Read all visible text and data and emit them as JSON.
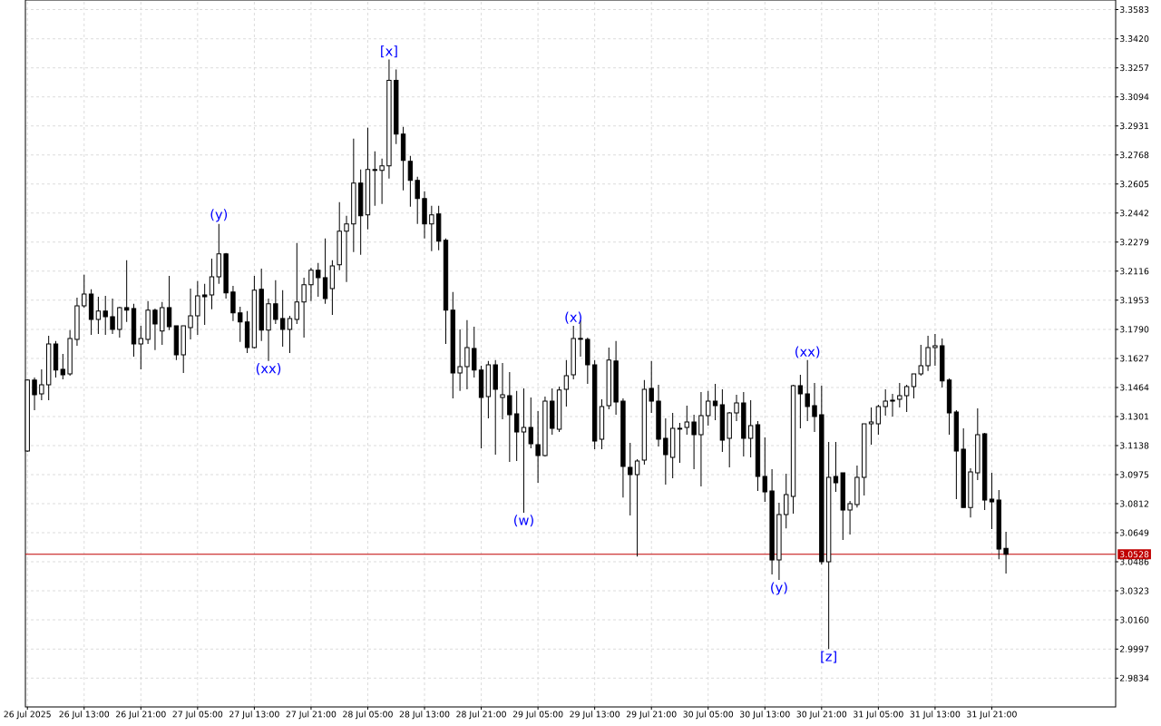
{
  "chart_data": {
    "type": "candlestick",
    "color": "#000000",
    "grid": true,
    "xlim": [
      "2025-07-26T04:43",
      "2025-08-01T14:28"
    ],
    "ylim": [
      2.9672,
      3.3637
    ],
    "xticks": [
      {
        "value": "2025-07-26T05:00",
        "label": "26 Jul 2025"
      },
      {
        "value": "2025-07-26T13:00",
        "label": "26 Jul 13:00"
      },
      {
        "value": "2025-07-26T21:00",
        "label": "26 Jul 21:00"
      },
      {
        "value": "2025-07-27T05:00",
        "label": "27 Jul 05:00"
      },
      {
        "value": "2025-07-27T13:00",
        "label": "27 Jul 13:00"
      },
      {
        "value": "2025-07-27T21:00",
        "label": "27 Jul 21:00"
      },
      {
        "value": "2025-07-28T05:00",
        "label": "28 Jul 05:00"
      },
      {
        "value": "2025-07-28T13:00",
        "label": "28 Jul 13:00"
      },
      {
        "value": "2025-07-28T21:00",
        "label": "28 Jul 21:00"
      },
      {
        "value": "2025-07-29T05:00",
        "label": "29 Jul 05:00"
      },
      {
        "value": "2025-07-29T13:00",
        "label": "29 Jul 13:00"
      },
      {
        "value": "2025-07-29T21:00",
        "label": "29 Jul 21:00"
      },
      {
        "value": "2025-07-30T05:00",
        "label": "30 Jul 05:00"
      },
      {
        "value": "2025-07-30T13:00",
        "label": "30 Jul 13:00"
      },
      {
        "value": "2025-07-30T21:00",
        "label": "30 Jul 21:00"
      },
      {
        "value": "2025-07-31T05:00",
        "label": "31 Jul 05:00"
      },
      {
        "value": "2025-07-31T13:00",
        "label": "31 Jul 13:00"
      },
      {
        "value": "2025-07-31T21:00",
        "label": "31 Jul 21:00"
      }
    ],
    "yticks": [
      2.9834,
      2.9997,
      {
        "value": 3.016,
        "label": "3.0160"
      },
      3.0323,
      3.0486,
      3.0649,
      3.0812,
      3.0975,
      3.1138,
      3.1301,
      3.1464,
      3.1627,
      {
        "value": 3.179,
        "label": "3.1790"
      },
      3.1953,
      3.2116,
      3.2279,
      3.2442,
      3.2605,
      3.2768,
      3.2931,
      3.3094,
      3.3257,
      {
        "value": 3.342,
        "label": "3.3420"
      },
      3.3583
    ],
    "x": [
      "2025-07-26T05:00",
      "2025-07-26T06:00",
      "2025-07-26T07:00",
      "2025-07-26T08:00",
      "2025-07-26T09:00",
      "2025-07-26T10:00",
      "2025-07-26T11:00",
      "2025-07-26T12:00",
      "2025-07-26T13:00",
      "2025-07-26T14:00",
      "2025-07-26T15:00",
      "2025-07-26T16:00",
      "2025-07-26T17:00",
      "2025-07-26T18:00",
      "2025-07-26T19:00",
      "2025-07-26T20:00",
      "2025-07-26T21:00",
      "2025-07-26T22:00",
      "2025-07-26T23:00",
      "2025-07-27T00:00",
      "2025-07-27T01:00",
      "2025-07-27T02:00",
      "2025-07-27T03:00",
      "2025-07-27T04:00",
      "2025-07-27T05:00",
      "2025-07-27T06:00",
      "2025-07-27T07:00",
      "2025-07-27T08:00",
      "2025-07-27T09:00",
      "2025-07-27T10:00",
      "2025-07-27T11:00",
      "2025-07-27T12:00",
      "2025-07-27T13:00",
      "2025-07-27T14:00",
      "2025-07-27T15:00",
      "2025-07-27T16:00",
      "2025-07-27T17:00",
      "2025-07-27T18:00",
      "2025-07-27T19:00",
      "2025-07-27T20:00",
      "2025-07-27T21:00",
      "2025-07-27T22:00",
      "2025-07-27T23:00",
      "2025-07-28T00:00",
      "2025-07-28T01:00",
      "2025-07-28T02:00",
      "2025-07-28T03:00",
      "2025-07-28T04:00",
      "2025-07-28T05:00",
      "2025-07-28T06:00",
      "2025-07-28T07:00",
      "2025-07-28T08:00",
      "2025-07-28T09:00",
      "2025-07-28T10:00",
      "2025-07-28T11:00",
      "2025-07-28T12:00",
      "2025-07-28T13:00",
      "2025-07-28T14:00",
      "2025-07-28T15:00",
      "2025-07-28T16:00",
      "2025-07-28T17:00",
      "2025-07-28T18:00",
      "2025-07-28T19:00",
      "2025-07-28T20:00",
      "2025-07-28T21:00",
      "2025-07-28T22:00",
      "2025-07-28T23:00",
      "2025-07-29T00:00",
      "2025-07-29T01:00",
      "2025-07-29T02:00",
      "2025-07-29T03:00",
      "2025-07-29T04:00",
      "2025-07-29T05:00",
      "2025-07-29T06:00",
      "2025-07-29T07:00",
      "2025-07-29T08:00",
      "2025-07-29T09:00",
      "2025-07-29T10:00",
      "2025-07-29T11:00",
      "2025-07-29T12:00",
      "2025-07-29T13:00",
      "2025-07-29T14:00",
      "2025-07-29T15:00",
      "2025-07-29T16:00",
      "2025-07-29T17:00",
      "2025-07-29T18:00",
      "2025-07-29T19:00",
      "2025-07-29T20:00",
      "2025-07-29T21:00",
      "2025-07-29T22:00",
      "2025-07-29T23:00",
      "2025-07-30T00:00",
      "2025-07-30T01:00",
      "2025-07-30T02:00",
      "2025-07-30T03:00",
      "2025-07-30T04:00",
      "2025-07-30T05:00",
      "2025-07-30T06:00",
      "2025-07-30T07:00",
      "2025-07-30T08:00",
      "2025-07-30T09:00",
      "2025-07-30T10:00",
      "2025-07-30T11:00",
      "2025-07-30T12:00",
      "2025-07-30T13:00",
      "2025-07-30T14:00",
      "2025-07-30T15:00",
      "2025-07-30T16:00",
      "2025-07-30T17:00",
      "2025-07-30T18:00",
      "2025-07-30T19:00",
      "2025-07-30T20:00",
      "2025-07-30T21:00",
      "2025-07-30T22:00",
      "2025-07-30T23:00",
      "2025-07-31T00:00",
      "2025-07-31T01:00",
      "2025-07-31T02:00",
      "2025-07-31T03:00",
      "2025-07-31T04:00",
      "2025-07-31T05:00",
      "2025-07-31T06:00",
      "2025-07-31T07:00",
      "2025-07-31T08:00",
      "2025-07-31T09:00",
      "2025-07-31T10:00",
      "2025-07-31T11:00",
      "2025-07-31T12:00",
      "2025-07-31T13:00",
      "2025-07-31T14:00",
      "2025-07-31T15:00",
      "2025-07-31T16:00",
      "2025-07-31T17:00",
      "2025-07-31T18:00",
      "2025-07-31T19:00",
      "2025-07-31T20:00",
      "2025-07-31T21:00",
      "2025-07-31T22:00",
      "2025-07-31T23:00"
    ],
    "ohlc": [
      [
        3.1107,
        3.151,
        3.1102,
        3.1505
      ],
      [
        3.1505,
        3.152,
        3.1337,
        3.1423
      ],
      [
        3.1428,
        3.1566,
        3.1393,
        3.1479
      ],
      [
        3.1479,
        3.1754,
        3.1393,
        3.1708
      ],
      [
        3.1708,
        3.1724,
        3.152,
        3.1561
      ],
      [
        3.1566,
        3.1652,
        3.151,
        3.1535
      ],
      [
        3.154,
        3.1785,
        3.153,
        3.1739
      ],
      [
        3.1734,
        3.1968,
        3.1698,
        3.1922
      ],
      [
        3.1922,
        3.2096,
        3.1912,
        3.1988
      ],
      [
        3.1988,
        3.2014,
        3.1759,
        3.1846
      ],
      [
        3.1846,
        3.1973,
        3.1764,
        3.1892
      ],
      [
        3.1892,
        3.1978,
        3.1759,
        3.1861
      ],
      [
        3.1861,
        3.1963,
        3.1764,
        3.179
      ],
      [
        3.179,
        3.1917,
        3.1744,
        3.1912
      ],
      [
        3.1912,
        3.2177,
        3.1831,
        3.1897
      ],
      [
        3.1907,
        3.1933,
        3.1637,
        3.1708
      ],
      [
        3.1708,
        3.181,
        3.1566,
        3.1739
      ],
      [
        3.1734,
        3.1948,
        3.1708,
        3.1897
      ],
      [
        3.1897,
        3.1907,
        3.1673,
        3.182
      ],
      [
        3.178,
        3.1943,
        3.1703,
        3.1912
      ],
      [
        3.1912,
        3.209,
        3.1785,
        3.1805
      ],
      [
        3.181,
        3.181,
        3.1617,
        3.1647
      ],
      [
        3.1647,
        3.181,
        3.1545,
        3.181
      ],
      [
        3.18,
        3.2019,
        3.1734,
        3.1866
      ],
      [
        3.1866,
        3.206,
        3.1759,
        3.1978
      ],
      [
        3.1983,
        3.2045,
        3.1815,
        3.1973
      ],
      [
        3.1983,
        3.2187,
        3.1902,
        3.2085
      ],
      [
        3.2085,
        3.2381,
        3.2045,
        3.2213
      ],
      [
        3.2213,
        3.2218,
        3.1963,
        3.1994
      ],
      [
        3.1999,
        3.2034,
        3.1836,
        3.1882
      ],
      [
        3.1882,
        3.1917,
        3.1719,
        3.1831
      ],
      [
        3.1831,
        3.1892,
        3.1657,
        3.1688
      ],
      [
        3.1688,
        3.209,
        3.1683,
        3.2009
      ],
      [
        3.2014,
        3.2131,
        3.1724,
        3.1785
      ],
      [
        3.1785,
        3.1963,
        3.1612,
        3.1933
      ],
      [
        3.1933,
        3.2065,
        3.182,
        3.1846
      ],
      [
        3.1851,
        3.2009,
        3.1693,
        3.179
      ],
      [
        3.179,
        3.1866,
        3.1657,
        3.1851
      ],
      [
        3.1846,
        3.2274,
        3.182,
        3.1943
      ],
      [
        3.1943,
        3.208,
        3.1744,
        3.204
      ],
      [
        3.204,
        3.2136,
        3.1948,
        3.2121
      ],
      [
        3.2121,
        3.2162,
        3.1973,
        3.208
      ],
      [
        3.208,
        3.2299,
        3.1933,
        3.1963
      ],
      [
        3.2019,
        3.2177,
        3.1871,
        3.2146
      ],
      [
        3.2152,
        3.2503,
        3.2121,
        3.234
      ],
      [
        3.234,
        3.2427,
        3.2055,
        3.2381
      ],
      [
        3.2381,
        3.286,
        3.2223,
        3.261
      ],
      [
        3.261,
        3.2686,
        3.2208,
        3.2427
      ],
      [
        3.2432,
        3.2921,
        3.235,
        3.2686
      ],
      [
        3.2686,
        3.2788,
        3.2483,
        3.2681
      ],
      [
        3.2681,
        3.2747,
        3.2493,
        3.2707
      ],
      [
        3.2707,
        3.3303,
        3.2636,
        3.3186
      ],
      [
        3.3186,
        3.3247,
        3.2829,
        3.2885
      ],
      [
        3.2885,
        3.2926,
        3.2569,
        3.2737
      ],
      [
        3.2732,
        3.2763,
        3.2478,
        3.2625
      ],
      [
        3.2625,
        3.2646,
        3.2381,
        3.2523
      ],
      [
        3.2523,
        3.2564,
        3.2299,
        3.2381
      ],
      [
        3.2381,
        3.2483,
        3.2228,
        3.2432
      ],
      [
        3.2437,
        3.2483,
        3.2233,
        3.2284
      ],
      [
        3.2289,
        3.2299,
        3.1708,
        3.1897
      ],
      [
        3.1897,
        3.1999,
        3.1403,
        3.1545
      ],
      [
        3.1545,
        3.179,
        3.1444,
        3.1581
      ],
      [
        3.1581,
        3.1841,
        3.1454,
        3.1688
      ],
      [
        3.1683,
        3.1805,
        3.152,
        3.1561
      ],
      [
        3.1561,
        3.1586,
        3.1123,
        3.1408
      ],
      [
        3.1413,
        3.1612,
        3.1291,
        3.1591
      ],
      [
        3.1591,
        3.1617,
        3.1087,
        3.1454
      ],
      [
        3.1408,
        3.1601,
        3.1286,
        3.1423
      ],
      [
        3.1418,
        3.155,
        3.1046,
        3.1311
      ],
      [
        3.1316,
        3.1444,
        3.1051,
        3.1214
      ],
      [
        3.1214,
        3.1459,
        3.0761,
        3.124
      ],
      [
        3.124,
        3.1408,
        3.1123,
        3.1148
      ],
      [
        3.1143,
        3.1331,
        3.0929,
        3.1082
      ],
      [
        3.1082,
        3.1413,
        3.1077,
        3.1387
      ],
      [
        3.1387,
        3.1459,
        3.1199,
        3.1235
      ],
      [
        3.123,
        3.1469,
        3.1214,
        3.1449
      ],
      [
        3.1454,
        3.1617,
        3.1357,
        3.153
      ],
      [
        3.1535,
        3.181,
        3.151,
        3.1739
      ],
      [
        3.1739,
        3.1841,
        3.1637,
        3.1734
      ],
      [
        3.1734,
        3.1744,
        3.1484,
        3.1591
      ],
      [
        3.1591,
        3.1617,
        3.1117,
        3.1163
      ],
      [
        3.1174,
        3.1398,
        3.1117,
        3.1357
      ],
      [
        3.1362,
        3.1688,
        3.1342,
        3.1617
      ],
      [
        3.1612,
        3.1724,
        3.1311,
        3.1382
      ],
      [
        3.1387,
        3.1403,
        3.0847,
        3.1021
      ],
      [
        3.1016,
        3.1153,
        3.0746,
        3.0975
      ],
      [
        3.0975,
        3.1061,
        3.0516,
        3.1051
      ],
      [
        3.1056,
        3.1505,
        3.1031,
        3.1454
      ],
      [
        3.1459,
        3.1612,
        3.1321,
        3.1387
      ],
      [
        3.1387,
        3.1479,
        3.1133,
        3.1174
      ],
      [
        3.1179,
        3.1291,
        3.0919,
        3.1087
      ],
      [
        3.1072,
        3.1321,
        3.0955,
        3.1235
      ],
      [
        3.1235,
        3.1265,
        3.1041,
        3.123
      ],
      [
        3.124,
        3.1362,
        3.1199,
        3.127
      ],
      [
        3.127,
        3.1311,
        3.1005,
        3.1199
      ],
      [
        3.1199,
        3.1438,
        3.0909,
        3.1306
      ],
      [
        3.1306,
        3.1444,
        3.125,
        3.1387
      ],
      [
        3.1387,
        3.1484,
        3.1281,
        3.1362
      ],
      [
        3.1367,
        3.1454,
        3.1102,
        3.1168
      ],
      [
        3.1179,
        3.1326,
        3.1016,
        3.1321
      ],
      [
        3.1321,
        3.1423,
        3.1275,
        3.1377
      ],
      [
        3.1377,
        3.1438,
        3.1077,
        3.1179
      ],
      [
        3.1179,
        3.1393,
        3.1072,
        3.125
      ],
      [
        3.1255,
        3.1275,
        3.0883,
        3.0965
      ],
      [
        3.0965,
        3.1184,
        3.0822,
        3.0878
      ],
      [
        3.0883,
        3.1005,
        3.0415,
        3.0496
      ],
      [
        3.0496,
        3.0817,
        3.0384,
        3.0751
      ],
      [
        3.0751,
        3.098,
        3.0674,
        3.0863
      ],
      [
        3.0853,
        3.1479,
        3.0756,
        3.1474
      ],
      [
        3.1474,
        3.1535,
        3.1235,
        3.1428
      ],
      [
        3.1428,
        3.1617,
        3.1275,
        3.1357
      ],
      [
        3.1362,
        3.1489,
        3.1214,
        3.1301
      ],
      [
        3.1311,
        3.1474,
        3.0471,
        3.0486
      ],
      [
        3.0486,
        3.1158,
        2.9997,
        3.096
      ],
      [
        3.0965,
        3.1158,
        3.0878,
        3.0929
      ],
      [
        3.0985,
        3.0985,
        3.0608,
        3.0776
      ],
      [
        3.0776,
        3.0827,
        3.0639,
        3.0812
      ],
      [
        3.0807,
        3.1026,
        3.0791,
        3.096
      ],
      [
        3.096,
        3.126,
        3.0858,
        3.126
      ],
      [
        3.126,
        3.1352,
        3.1143,
        3.127
      ],
      [
        3.126,
        3.1367,
        3.1199,
        3.1357
      ],
      [
        3.1357,
        3.1454,
        3.1306,
        3.1387
      ],
      [
        3.1393,
        3.1428,
        3.1301,
        3.1387
      ],
      [
        3.1398,
        3.1489,
        3.1352,
        3.1418
      ],
      [
        3.1418,
        3.1479,
        3.1326,
        3.1469
      ],
      [
        3.1469,
        3.154,
        3.1403,
        3.154
      ],
      [
        3.154,
        3.1703,
        3.153,
        3.1586
      ],
      [
        3.1586,
        3.1754,
        3.1556,
        3.1688
      ],
      [
        3.1688,
        3.1764,
        3.1586,
        3.1698
      ],
      [
        3.1698,
        3.1739,
        3.1464,
        3.15
      ],
      [
        3.1505,
        3.1515,
        3.1199,
        3.1321
      ],
      [
        3.1326,
        3.1337,
        3.0837,
        3.1107
      ],
      [
        3.1118,
        3.1235,
        3.0791,
        3.0791
      ],
      [
        3.0791,
        3.1011,
        3.0735,
        3.099
      ],
      [
        3.0985,
        3.1347,
        3.0944,
        3.1199
      ],
      [
        3.1204,
        3.1209,
        3.0776,
        3.0832
      ],
      [
        3.0837,
        3.0985,
        3.0669,
        3.0822
      ],
      [
        3.0832,
        3.0888,
        3.0501,
        3.0557
      ],
      [
        3.0562,
        3.0654,
        3.042,
        3.0528
      ]
    ],
    "ref_lines": [
      {
        "axis": "y",
        "value": 3.0528,
        "label": "3.0528",
        "color": "#c00000"
      }
    ],
    "annotations": [
      {
        "text": "(y)",
        "x": "2025-07-27T08:00",
        "y": 3.2381
      },
      {
        "text": "(xx)",
        "x": "2025-07-27T15:00",
        "y": 3.1612
      },
      {
        "text": "[x]",
        "x": "2025-07-28T08:00",
        "y": 3.3303
      },
      {
        "text": "(w)",
        "x": "2025-07-29T03:00",
        "y": 3.0761
      },
      {
        "text": "(x)",
        "x": "2025-07-29T10:00",
        "y": 3.181
      },
      {
        "text": "(y)",
        "x": "2025-07-30T15:00",
        "y": 3.0384
      },
      {
        "text": "(xx)",
        "x": "2025-07-30T19:00",
        "y": 3.1617
      },
      {
        "text": "[z]",
        "x": "2025-07-30T22:00",
        "y": 2.9997
      }
    ]
  }
}
